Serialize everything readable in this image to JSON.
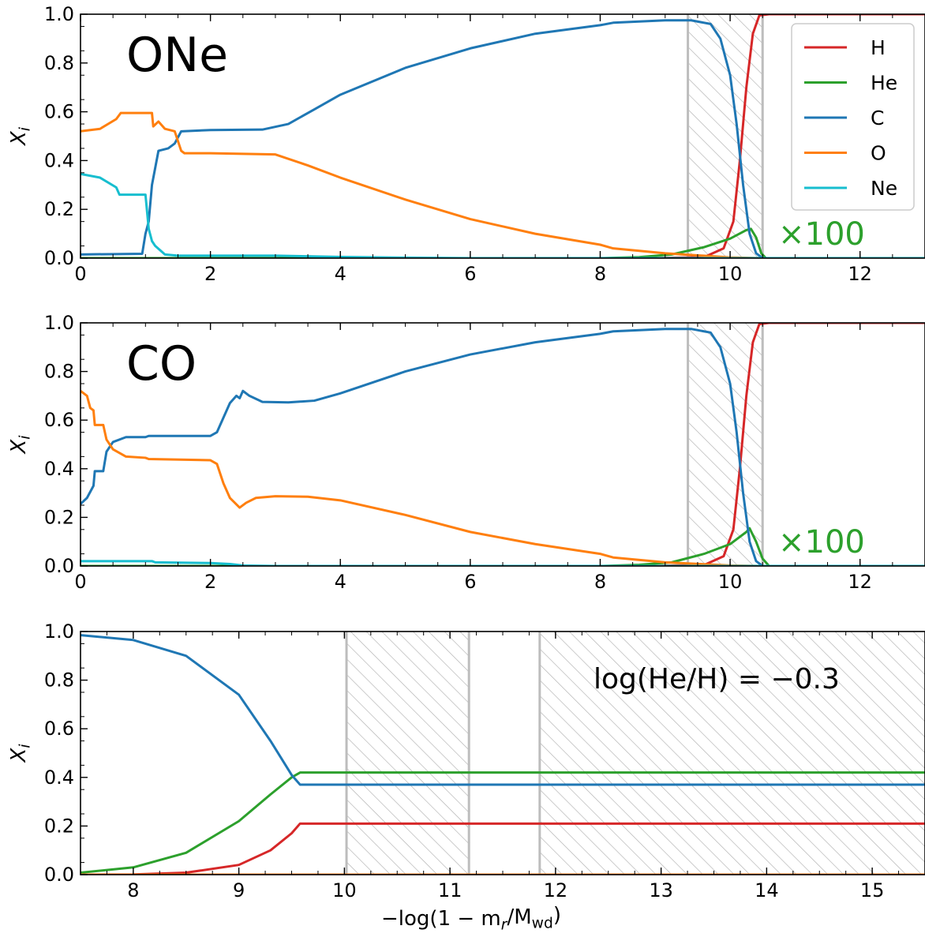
{
  "chart_data": [
    {
      "type": "line",
      "panel_label": "ONe",
      "ylabel": "X_i",
      "xlim": [
        0,
        13
      ],
      "ylim": [
        0,
        1
      ],
      "xticks": [
        "0",
        "2",
        "4",
        "6",
        "8",
        "10",
        "12"
      ],
      "yticks": [
        "0.0",
        "0.2",
        "0.4",
        "0.6",
        "0.8",
        "1.0"
      ],
      "he_multiplier_label": "×100",
      "hatched_regions": [
        [
          9.35,
          10.5
        ]
      ],
      "legend": {
        "placement": "top-right",
        "entries": [
          "H",
          "He",
          "C",
          "O",
          "Ne"
        ]
      },
      "series": [
        {
          "name": "H",
          "color": "#d62728",
          "points": [
            [
              8.8,
              0
            ],
            [
              9.6,
              0.004
            ],
            [
              9.9,
              0.04
            ],
            [
              10.05,
              0.15
            ],
            [
              10.15,
              0.4
            ],
            [
              10.25,
              0.7
            ],
            [
              10.35,
              0.92
            ],
            [
              10.45,
              0.995
            ],
            [
              10.6,
              1
            ],
            [
              13,
              1
            ]
          ]
        },
        {
          "name": "He",
          "color": "#2ca02c",
          "points": [
            [
              0,
              0
            ],
            [
              8.0,
              0
            ],
            [
              8.6,
              0.004
            ],
            [
              9.1,
              0.015
            ],
            [
              9.6,
              0.045
            ],
            [
              10.0,
              0.08
            ],
            [
              10.25,
              0.115
            ],
            [
              10.32,
              0.12
            ],
            [
              10.4,
              0.085
            ],
            [
              10.48,
              0.02
            ],
            [
              10.55,
              0
            ],
            [
              13,
              0
            ]
          ]
        },
        {
          "name": "C",
          "color": "#1f77b4",
          "points": [
            [
              0,
              0.015
            ],
            [
              0.95,
              0.018
            ],
            [
              1.0,
              0.1
            ],
            [
              1.05,
              0.15
            ],
            [
              1.1,
              0.3
            ],
            [
              1.2,
              0.44
            ],
            [
              1.35,
              0.45
            ],
            [
              1.45,
              0.47
            ],
            [
              1.55,
              0.52
            ],
            [
              2.0,
              0.525
            ],
            [
              2.8,
              0.527
            ],
            [
              3.2,
              0.55
            ],
            [
              3.6,
              0.61
            ],
            [
              4.0,
              0.67
            ],
            [
              5.0,
              0.78
            ],
            [
              6.0,
              0.86
            ],
            [
              7.0,
              0.92
            ],
            [
              8.0,
              0.955
            ],
            [
              8.2,
              0.965
            ],
            [
              9.0,
              0.975
            ],
            [
              9.4,
              0.975
            ],
            [
              9.7,
              0.96
            ],
            [
              9.85,
              0.9
            ],
            [
              10.0,
              0.75
            ],
            [
              10.1,
              0.55
            ],
            [
              10.2,
              0.3
            ],
            [
              10.3,
              0.1
            ],
            [
              10.4,
              0.02
            ],
            [
              10.5,
              0
            ],
            [
              13,
              0
            ]
          ]
        },
        {
          "name": "O",
          "color": "#ff7f0e",
          "points": [
            [
              0,
              0.52
            ],
            [
              0.3,
              0.53
            ],
            [
              0.55,
              0.57
            ],
            [
              0.62,
              0.595
            ],
            [
              1.1,
              0.595
            ],
            [
              1.12,
              0.54
            ],
            [
              1.2,
              0.56
            ],
            [
              1.3,
              0.53
            ],
            [
              1.45,
              0.52
            ],
            [
              1.55,
              0.44
            ],
            [
              1.6,
              0.43
            ],
            [
              2.0,
              0.43
            ],
            [
              3.0,
              0.425
            ],
            [
              3.5,
              0.38
            ],
            [
              4.0,
              0.33
            ],
            [
              5.0,
              0.24
            ],
            [
              6.0,
              0.16
            ],
            [
              7.0,
              0.1
            ],
            [
              8.0,
              0.055
            ],
            [
              8.2,
              0.04
            ],
            [
              9.0,
              0.02
            ],
            [
              10.0,
              0.003
            ],
            [
              10.5,
              0
            ],
            [
              13,
              0
            ]
          ]
        },
        {
          "name": "Ne",
          "color": "#17becf",
          "points": [
            [
              0,
              0.345
            ],
            [
              0.3,
              0.33
            ],
            [
              0.55,
              0.29
            ],
            [
              0.6,
              0.26
            ],
            [
              1.0,
              0.26
            ],
            [
              1.05,
              0.12
            ],
            [
              1.1,
              0.07
            ],
            [
              1.15,
              0.05
            ],
            [
              1.3,
              0.015
            ],
            [
              1.5,
              0.01
            ],
            [
              2.0,
              0.01
            ],
            [
              3.0,
              0.01
            ],
            [
              4.0,
              0.005
            ],
            [
              5.0,
              0.002
            ],
            [
              6.0,
              0
            ],
            [
              13,
              0
            ]
          ]
        }
      ]
    },
    {
      "type": "line",
      "panel_label": "CO",
      "ylabel": "X_i",
      "xlim": [
        0,
        13
      ],
      "ylim": [
        0,
        1
      ],
      "xticks": [
        "0",
        "2",
        "4",
        "6",
        "8",
        "10",
        "12"
      ],
      "yticks": [
        "0.0",
        "0.2",
        "0.4",
        "0.6",
        "0.8",
        "1.0"
      ],
      "he_multiplier_label": "×100",
      "hatched_regions": [
        [
          9.35,
          10.5
        ]
      ],
      "series": [
        {
          "name": "H",
          "color": "#d62728",
          "points": [
            [
              8.8,
              0
            ],
            [
              9.6,
              0.004
            ],
            [
              9.9,
              0.04
            ],
            [
              10.05,
              0.15
            ],
            [
              10.15,
              0.4
            ],
            [
              10.25,
              0.7
            ],
            [
              10.35,
              0.92
            ],
            [
              10.45,
              0.995
            ],
            [
              10.6,
              1
            ],
            [
              13,
              1
            ]
          ]
        },
        {
          "name": "He",
          "color": "#2ca02c",
          "points": [
            [
              0,
              0
            ],
            [
              8.0,
              0
            ],
            [
              8.6,
              0.005
            ],
            [
              9.1,
              0.015
            ],
            [
              9.6,
              0.05
            ],
            [
              10.0,
              0.09
            ],
            [
              10.25,
              0.14
            ],
            [
              10.3,
              0.155
            ],
            [
              10.4,
              0.1
            ],
            [
              10.5,
              0.03
            ],
            [
              10.6,
              0
            ],
            [
              13,
              0
            ]
          ]
        },
        {
          "name": "C",
          "color": "#1f77b4",
          "points": [
            [
              0,
              0.255
            ],
            [
              0.1,
              0.28
            ],
            [
              0.2,
              0.33
            ],
            [
              0.22,
              0.39
            ],
            [
              0.35,
              0.39
            ],
            [
              0.4,
              0.47
            ],
            [
              0.5,
              0.51
            ],
            [
              0.7,
              0.53
            ],
            [
              1.0,
              0.53
            ],
            [
              1.05,
              0.535
            ],
            [
              2.0,
              0.535
            ],
            [
              2.1,
              0.55
            ],
            [
              2.2,
              0.61
            ],
            [
              2.3,
              0.67
            ],
            [
              2.4,
              0.7
            ],
            [
              2.45,
              0.69
            ],
            [
              2.5,
              0.72
            ],
            [
              2.6,
              0.7
            ],
            [
              2.8,
              0.675
            ],
            [
              3.2,
              0.673
            ],
            [
              3.6,
              0.68
            ],
            [
              4.0,
              0.71
            ],
            [
              5.0,
              0.8
            ],
            [
              6.0,
              0.87
            ],
            [
              7.0,
              0.92
            ],
            [
              8.0,
              0.955
            ],
            [
              8.2,
              0.965
            ],
            [
              9.0,
              0.975
            ],
            [
              9.4,
              0.975
            ],
            [
              9.7,
              0.96
            ],
            [
              9.85,
              0.9
            ],
            [
              10.0,
              0.75
            ],
            [
              10.1,
              0.55
            ],
            [
              10.2,
              0.3
            ],
            [
              10.3,
              0.1
            ],
            [
              10.4,
              0.02
            ],
            [
              10.5,
              0
            ],
            [
              13,
              0
            ]
          ]
        },
        {
          "name": "O",
          "color": "#ff7f0e",
          "points": [
            [
              0,
              0.72
            ],
            [
              0.1,
              0.7
            ],
            [
              0.15,
              0.65
            ],
            [
              0.2,
              0.64
            ],
            [
              0.22,
              0.58
            ],
            [
              0.35,
              0.58
            ],
            [
              0.4,
              0.52
            ],
            [
              0.5,
              0.48
            ],
            [
              0.7,
              0.45
            ],
            [
              1.0,
              0.445
            ],
            [
              1.05,
              0.44
            ],
            [
              2.0,
              0.435
            ],
            [
              2.1,
              0.42
            ],
            [
              2.2,
              0.34
            ],
            [
              2.3,
              0.28
            ],
            [
              2.45,
              0.24
            ],
            [
              2.55,
              0.26
            ],
            [
              2.7,
              0.28
            ],
            [
              3.0,
              0.287
            ],
            [
              3.5,
              0.285
            ],
            [
              4.0,
              0.27
            ],
            [
              5.0,
              0.21
            ],
            [
              6.0,
              0.14
            ],
            [
              7.0,
              0.09
            ],
            [
              8.0,
              0.05
            ],
            [
              8.2,
              0.035
            ],
            [
              9.0,
              0.015
            ],
            [
              10.0,
              0.002
            ],
            [
              10.5,
              0
            ],
            [
              13,
              0
            ]
          ]
        },
        {
          "name": "Ne",
          "color": "#17becf",
          "points": [
            [
              0,
              0.02
            ],
            [
              1.1,
              0.02
            ],
            [
              1.15,
              0.015
            ],
            [
              2.0,
              0.012
            ],
            [
              2.3,
              0.008
            ],
            [
              2.5,
              0.002
            ],
            [
              3.0,
              0
            ],
            [
              13,
              0
            ]
          ]
        }
      ]
    },
    {
      "type": "line",
      "ylabel": "X_i",
      "xlabel": "−log(1 − m_r/M_wd)",
      "xlim": [
        7.5,
        15.5
      ],
      "ylim": [
        0,
        1
      ],
      "xticks": [
        "8",
        "9",
        "10",
        "11",
        "12",
        "13",
        "14",
        "15"
      ],
      "yticks": [
        "0.0",
        "0.2",
        "0.4",
        "0.6",
        "0.8",
        "1.0"
      ],
      "annotation": "log(He/H) = −0.3",
      "hatched_regions": [
        [
          10.02,
          11.18
        ],
        [
          11.85,
          15.5
        ]
      ],
      "series": [
        {
          "name": "H",
          "color": "#d62728",
          "points": [
            [
              7.5,
              0
            ],
            [
              8.0,
              0.001
            ],
            [
              8.5,
              0.008
            ],
            [
              9.0,
              0.04
            ],
            [
              9.3,
              0.1
            ],
            [
              9.5,
              0.17
            ],
            [
              9.58,
              0.21
            ],
            [
              15.5,
              0.21
            ]
          ]
        },
        {
          "name": "He",
          "color": "#2ca02c",
          "points": [
            [
              7.5,
              0.008
            ],
            [
              8.0,
              0.03
            ],
            [
              8.5,
              0.09
            ],
            [
              9.0,
              0.22
            ],
            [
              9.3,
              0.33
            ],
            [
              9.5,
              0.4
            ],
            [
              9.58,
              0.42
            ],
            [
              15.5,
              0.42
            ]
          ]
        },
        {
          "name": "C",
          "color": "#1f77b4",
          "points": [
            [
              7.5,
              0.985
            ],
            [
              8.0,
              0.965
            ],
            [
              8.5,
              0.9
            ],
            [
              9.0,
              0.74
            ],
            [
              9.3,
              0.55
            ],
            [
              9.5,
              0.41
            ],
            [
              9.58,
              0.37
            ],
            [
              15.5,
              0.37
            ]
          ]
        },
        {
          "name": "O",
          "color": "#ff7f0e",
          "points": [
            [
              7.5,
              0
            ],
            [
              15.5,
              0
            ]
          ]
        }
      ]
    }
  ]
}
